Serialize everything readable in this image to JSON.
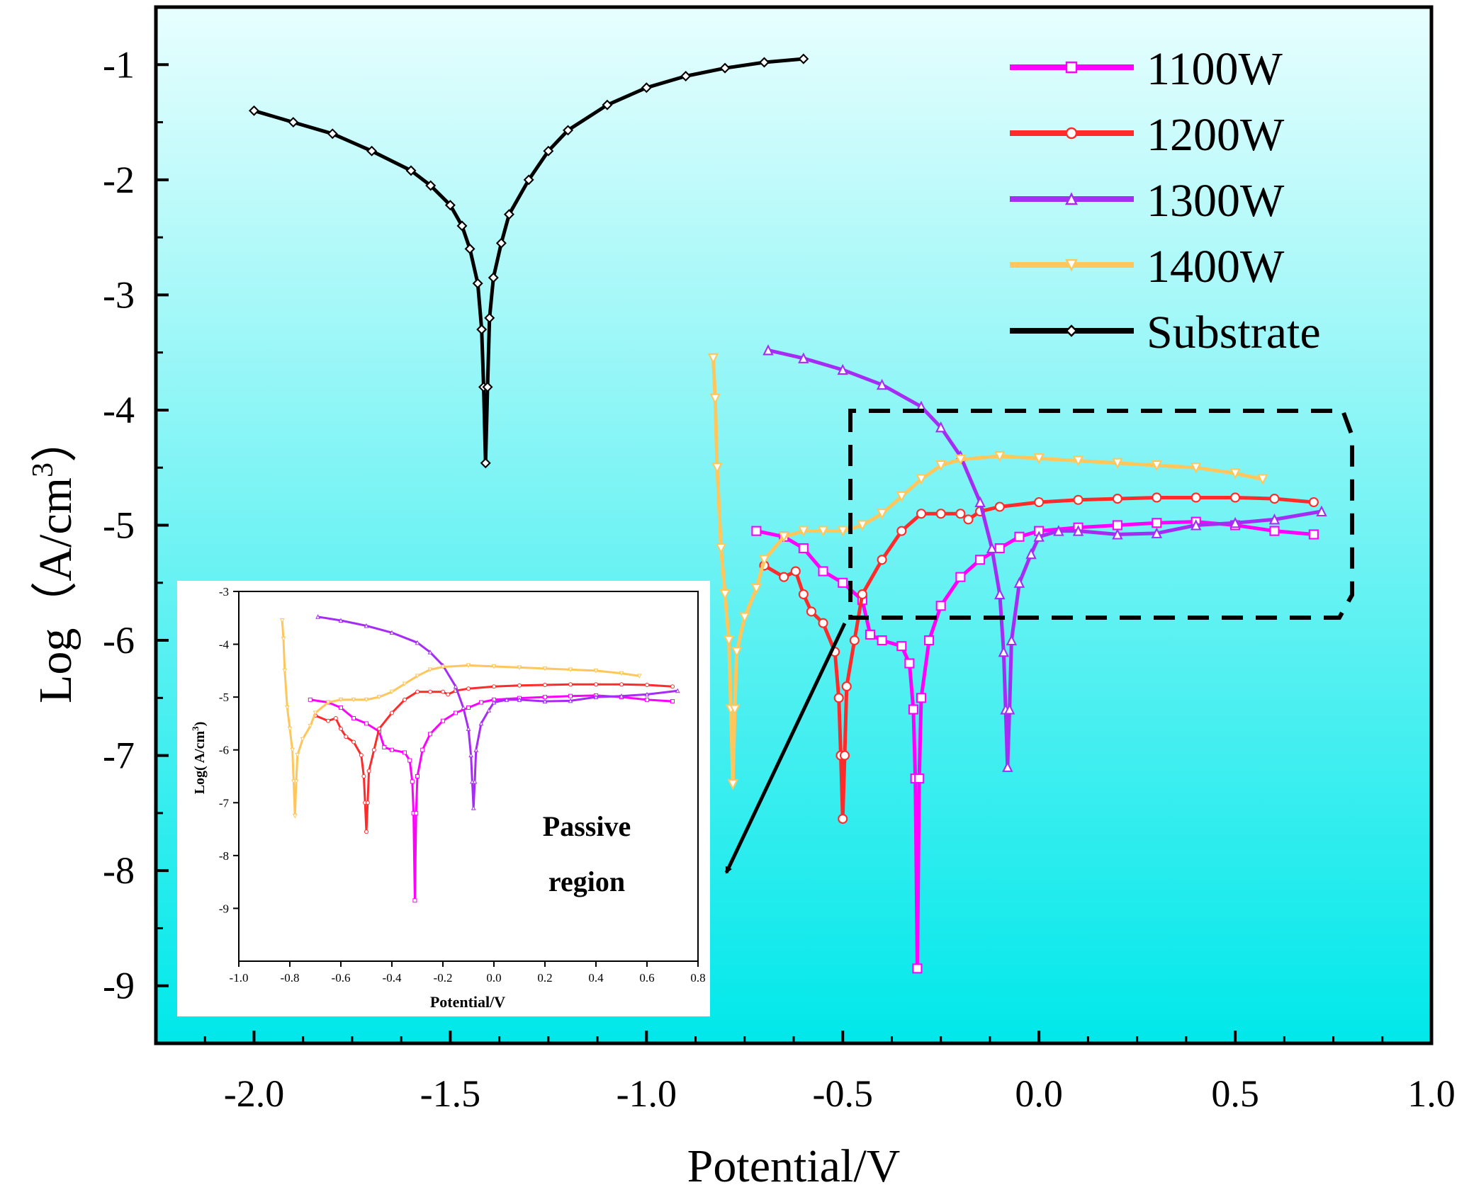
{
  "chart_data": [
    {
      "type": "line",
      "role": "main",
      "xlabel": "Potential/V",
      "ylabel_prefix": "Log（A/cm",
      "ylabel_sup": "3",
      "ylabel_suffix": "）",
      "xlim": [
        -2.25,
        1.0
      ],
      "ylim": [
        -9.5,
        -0.5
      ],
      "xticks": [
        -2.0,
        -1.5,
        -1.0,
        -0.5,
        0.0,
        0.5,
        1.0
      ],
      "xtick_labels": [
        "-2.0",
        "-1.5",
        "-1.0",
        "-0.5",
        "0.0",
        "0.5",
        "1.0"
      ],
      "yticks": [
        -1,
        -2,
        -3,
        -4,
        -5,
        -6,
        -7,
        -8,
        -9
      ],
      "ytick_labels": [
        "-1",
        "-2",
        "-3",
        "-4",
        "-5",
        "-6",
        "-7",
        "-8",
        "-9"
      ],
      "background_gradient": [
        "#e8fefe",
        "#00e8ea"
      ],
      "legend_position": "top-right",
      "series": [
        {
          "name": "1100W",
          "color": "#ff00ff",
          "marker": "square",
          "points": [
            [
              -0.72,
              -5.05
            ],
            [
              -0.65,
              -5.1
            ],
            [
              -0.6,
              -5.2
            ],
            [
              -0.55,
              -5.4
            ],
            [
              -0.5,
              -5.5
            ],
            [
              -0.45,
              -5.65
            ],
            [
              -0.43,
              -5.95
            ],
            [
              -0.4,
              -6.0
            ],
            [
              -0.35,
              -6.05
            ],
            [
              -0.33,
              -6.2
            ],
            [
              -0.32,
              -6.6
            ],
            [
              -0.315,
              -7.2
            ],
            [
              -0.31,
              -8.85
            ],
            [
              -0.305,
              -7.2
            ],
            [
              -0.3,
              -6.5
            ],
            [
              -0.28,
              -6.0
            ],
            [
              -0.25,
              -5.7
            ],
            [
              -0.2,
              -5.45
            ],
            [
              -0.15,
              -5.3
            ],
            [
              -0.1,
              -5.2
            ],
            [
              -0.05,
              -5.1
            ],
            [
              0.0,
              -5.05
            ],
            [
              0.1,
              -5.02
            ],
            [
              0.2,
              -5.0
            ],
            [
              0.3,
              -4.98
            ],
            [
              0.4,
              -4.97
            ],
            [
              0.5,
              -5.0
            ],
            [
              0.6,
              -5.05
            ],
            [
              0.7,
              -5.08
            ]
          ]
        },
        {
          "name": "1200W",
          "color": "#ff2a2a",
          "marker": "circle",
          "points": [
            [
              -0.7,
              -5.35
            ],
            [
              -0.65,
              -5.45
            ],
            [
              -0.62,
              -5.4
            ],
            [
              -0.6,
              -5.6
            ],
            [
              -0.58,
              -5.75
            ],
            [
              -0.55,
              -5.85
            ],
            [
              -0.52,
              -6.1
            ],
            [
              -0.51,
              -6.5
            ],
            [
              -0.505,
              -7.0
            ],
            [
              -0.5,
              -7.55
            ],
            [
              -0.495,
              -7.0
            ],
            [
              -0.49,
              -6.4
            ],
            [
              -0.47,
              -6.0
            ],
            [
              -0.45,
              -5.6
            ],
            [
              -0.4,
              -5.3
            ],
            [
              -0.35,
              -5.05
            ],
            [
              -0.3,
              -4.9
            ],
            [
              -0.25,
              -4.9
            ],
            [
              -0.2,
              -4.9
            ],
            [
              -0.18,
              -4.95
            ],
            [
              -0.15,
              -4.88
            ],
            [
              -0.1,
              -4.84
            ],
            [
              0.0,
              -4.8
            ],
            [
              0.1,
              -4.78
            ],
            [
              0.2,
              -4.77
            ],
            [
              0.3,
              -4.76
            ],
            [
              0.4,
              -4.76
            ],
            [
              0.5,
              -4.76
            ],
            [
              0.6,
              -4.77
            ],
            [
              0.7,
              -4.8
            ]
          ]
        },
        {
          "name": "1300W",
          "color": "#a52cf5",
          "marker": "triangle-up",
          "points": [
            [
              -0.69,
              -3.48
            ],
            [
              -0.6,
              -3.55
            ],
            [
              -0.5,
              -3.65
            ],
            [
              -0.4,
              -3.78
            ],
            [
              -0.3,
              -3.97
            ],
            [
              -0.25,
              -4.15
            ],
            [
              -0.2,
              -4.4
            ],
            [
              -0.15,
              -4.8
            ],
            [
              -0.12,
              -5.2
            ],
            [
              -0.1,
              -5.6
            ],
            [
              -0.09,
              -6.1
            ],
            [
              -0.085,
              -6.6
            ],
            [
              -0.08,
              -7.1
            ],
            [
              -0.075,
              -6.6
            ],
            [
              -0.07,
              -6.0
            ],
            [
              -0.05,
              -5.5
            ],
            [
              -0.02,
              -5.25
            ],
            [
              0.0,
              -5.1
            ],
            [
              0.05,
              -5.05
            ],
            [
              0.1,
              -5.05
            ],
            [
              0.2,
              -5.08
            ],
            [
              0.3,
              -5.07
            ],
            [
              0.4,
              -5.0
            ],
            [
              0.5,
              -4.98
            ],
            [
              0.6,
              -4.95
            ],
            [
              0.72,
              -4.88
            ]
          ]
        },
        {
          "name": "1400W",
          "color": "#ffc65c",
          "marker": "triangle-down",
          "points": [
            [
              -0.83,
              -3.55
            ],
            [
              -0.825,
              -3.9
            ],
            [
              -0.82,
              -4.5
            ],
            [
              -0.81,
              -5.2
            ],
            [
              -0.8,
              -5.6
            ],
            [
              -0.79,
              -6.0
            ],
            [
              -0.785,
              -6.6
            ],
            [
              -0.78,
              -7.25
            ],
            [
              -0.775,
              -6.6
            ],
            [
              -0.77,
              -6.1
            ],
            [
              -0.75,
              -5.8
            ],
            [
              -0.72,
              -5.55
            ],
            [
              -0.7,
              -5.3
            ],
            [
              -0.65,
              -5.1
            ],
            [
              -0.6,
              -5.05
            ],
            [
              -0.55,
              -5.05
            ],
            [
              -0.5,
              -5.05
            ],
            [
              -0.45,
              -5.0
            ],
            [
              -0.4,
              -4.9
            ],
            [
              -0.35,
              -4.75
            ],
            [
              -0.3,
              -4.6
            ],
            [
              -0.25,
              -4.48
            ],
            [
              -0.2,
              -4.43
            ],
            [
              -0.1,
              -4.4
            ],
            [
              0.0,
              -4.42
            ],
            [
              0.1,
              -4.44
            ],
            [
              0.2,
              -4.46
            ],
            [
              0.3,
              -4.48
            ],
            [
              0.4,
              -4.5
            ],
            [
              0.5,
              -4.55
            ],
            [
              0.57,
              -4.6
            ]
          ]
        },
        {
          "name": "Substrate",
          "color": "#000000",
          "marker": "diamond",
          "points": [
            [
              -2.0,
              -1.4
            ],
            [
              -1.9,
              -1.5
            ],
            [
              -1.8,
              -1.6
            ],
            [
              -1.7,
              -1.75
            ],
            [
              -1.6,
              -1.92
            ],
            [
              -1.55,
              -2.05
            ],
            [
              -1.5,
              -2.22
            ],
            [
              -1.47,
              -2.4
            ],
            [
              -1.45,
              -2.6
            ],
            [
              -1.43,
              -2.9
            ],
            [
              -1.42,
              -3.3
            ],
            [
              -1.415,
              -3.8
            ],
            [
              -1.41,
              -4.46
            ],
            [
              -1.405,
              -3.8
            ],
            [
              -1.4,
              -3.2
            ],
            [
              -1.39,
              -2.85
            ],
            [
              -1.37,
              -2.55
            ],
            [
              -1.35,
              -2.3
            ],
            [
              -1.3,
              -2.0
            ],
            [
              -1.25,
              -1.75
            ],
            [
              -1.2,
              -1.57
            ],
            [
              -1.1,
              -1.35
            ],
            [
              -1.0,
              -1.2
            ],
            [
              -0.9,
              -1.1
            ],
            [
              -0.8,
              -1.03
            ],
            [
              -0.7,
              -0.98
            ],
            [
              -0.6,
              -0.95
            ]
          ]
        }
      ]
    },
    {
      "type": "line",
      "role": "inset",
      "xlabel": "Potential/V",
      "ylabel_prefix": "Log(  A/cm",
      "ylabel_sup": "3",
      "ylabel_suffix": ")",
      "xlim": [
        -1.0,
        0.8
      ],
      "ylim": [
        -10.0,
        -3.0
      ],
      "xticks": [
        -1.0,
        -0.8,
        -0.6,
        -0.4,
        -0.2,
        0.0,
        0.2,
        0.4,
        0.6,
        0.8
      ],
      "xtick_labels": [
        "-1.0",
        "-0.8",
        "-0.6",
        "-0.4",
        "-0.2",
        "0.0",
        "0.2",
        "0.4",
        "0.6",
        "0.8"
      ],
      "yticks": [
        -3,
        -4,
        -5,
        -6,
        -7,
        -8,
        -9
      ],
      "ytick_labels": [
        "-3",
        "-4",
        "-5",
        "-6",
        "-7",
        "-8",
        "-9"
      ],
      "annotation_line1": "Passive",
      "annotation_line2": "region"
    }
  ]
}
